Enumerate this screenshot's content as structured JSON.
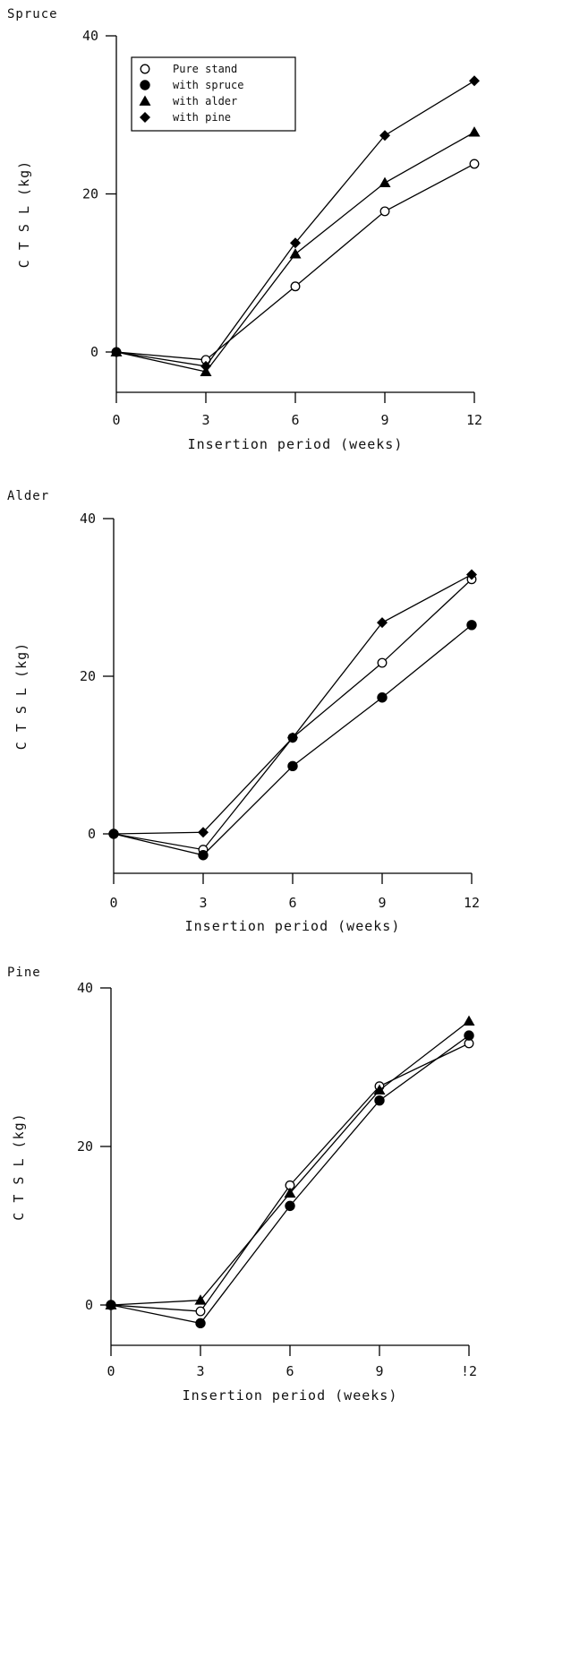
{
  "chart_data": [
    {
      "type": "line",
      "panel_label": "Spruce",
      "xlabel": "Insertion period (weeks)",
      "ylabel": "C T S L (kg)",
      "x": [
        0,
        3,
        6,
        9,
        12
      ],
      "x_ticks": [
        "0",
        "3",
        "6",
        "9",
        "12"
      ],
      "y_ticks": [
        "0",
        "20",
        "40"
      ],
      "xlim": [
        0,
        12
      ],
      "ylim": [
        -5,
        40
      ],
      "legend": {
        "placement": "top-left",
        "entries": [
          {
            "name": "Pure stand",
            "marker": "circle-open"
          },
          {
            "name": "with spruce",
            "marker": "circle-filled"
          },
          {
            "name": "with alder",
            "marker": "triangle-filled"
          },
          {
            "name": "with pine",
            "marker": "diamond-filled"
          }
        ]
      },
      "series": [
        {
          "name": "Pure stand",
          "marker": "circle-open",
          "values": [
            0,
            -1,
            8.3,
            17.8,
            23.8
          ]
        },
        {
          "name": "with alder",
          "marker": "triangle-filled",
          "values": [
            0,
            -2.5,
            12.4,
            21.4,
            27.8
          ]
        },
        {
          "name": "with pine",
          "marker": "diamond-filled",
          "values": [
            0,
            -1.8,
            13.8,
            27.4,
            34.3
          ]
        }
      ]
    },
    {
      "type": "line",
      "panel_label": "Alder",
      "xlabel": "Insertion period (weeks)",
      "ylabel": "C T S L (kg)",
      "x": [
        0,
        3,
        6,
        9,
        12
      ],
      "x_ticks": [
        "0",
        "3",
        "6",
        "9",
        "12"
      ],
      "y_ticks": [
        "0",
        "20",
        "40"
      ],
      "xlim": [
        0,
        12
      ],
      "ylim": [
        -5,
        40
      ],
      "series": [
        {
          "name": "Pure stand",
          "marker": "circle-open",
          "values": [
            0,
            -2,
            12.2,
            21.7,
            32.3
          ]
        },
        {
          "name": "with spruce",
          "marker": "circle-filled",
          "values": [
            0,
            -2.7,
            8.6,
            17.3,
            26.5
          ]
        },
        {
          "name": "with pine",
          "marker": "diamond-filled",
          "values": [
            0,
            0.2,
            12.2,
            26.8,
            32.9
          ]
        }
      ]
    },
    {
      "type": "line",
      "panel_label": "Pine",
      "xlabel": "Insertion period (weeks)",
      "ylabel": "C T S L (kg)",
      "x": [
        0,
        3,
        6,
        9,
        12
      ],
      "x_ticks": [
        "0",
        "3",
        "6",
        "9",
        "!2"
      ],
      "y_ticks": [
        "0",
        "20",
        "40"
      ],
      "xlim": [
        0,
        12
      ],
      "ylim": [
        -5,
        40
      ],
      "series": [
        {
          "name": "Pure stand",
          "marker": "circle-open",
          "values": [
            0,
            -0.8,
            15.1,
            27.6,
            33
          ]
        },
        {
          "name": "with spruce",
          "marker": "circle-filled",
          "values": [
            0,
            -2.3,
            12.5,
            25.8,
            34
          ]
        },
        {
          "name": "with alder",
          "marker": "triangle-filled",
          "values": [
            0,
            0.6,
            14.1,
            27.1,
            35.8
          ]
        }
      ]
    }
  ]
}
